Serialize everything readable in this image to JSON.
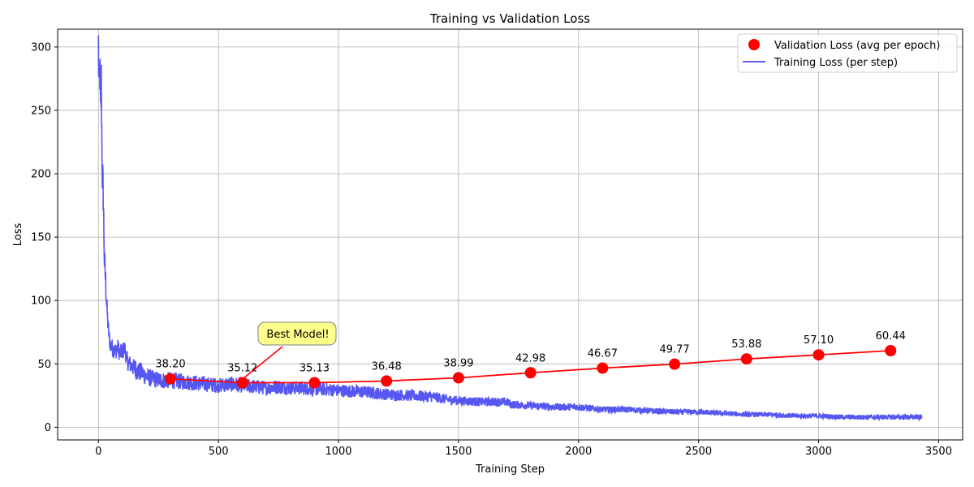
{
  "chart_data": {
    "type": "line",
    "title": "Training vs Validation Loss",
    "xlabel": "Training Step",
    "ylabel": "Loss",
    "xlim": [
      -170,
      3600
    ],
    "ylim": [
      -10,
      314
    ],
    "x_ticks": [
      0,
      500,
      1000,
      1500,
      2000,
      2500,
      3000,
      3500
    ],
    "y_ticks": [
      0,
      50,
      100,
      150,
      200,
      250,
      300
    ],
    "grid": true,
    "legend_position": "top-right",
    "series": [
      {
        "name": "Validation Loss (avg per epoch)",
        "kind": "line-with-markers",
        "color": "#ff0000",
        "x": [
          300,
          600,
          900,
          1200,
          1500,
          1800,
          2100,
          2400,
          2700,
          3000,
          3300
        ],
        "values": [
          38.2,
          35.12,
          35.13,
          36.48,
          38.99,
          42.98,
          46.67,
          49.77,
          53.88,
          57.1,
          60.44
        ],
        "labels": [
          "38.20",
          "35.12",
          "35.13",
          "36.48",
          "38.99",
          "42.98",
          "46.67",
          "49.77",
          "53.88",
          "57.10",
          "60.44"
        ]
      },
      {
        "name": "Training Loss (per step)",
        "kind": "line",
        "color": "#4444ee",
        "x": [
          0,
          3,
          6,
          9,
          12,
          16,
          20,
          25,
          30,
          35,
          40,
          45,
          50,
          60,
          70,
          80,
          90,
          100,
          110,
          120,
          140,
          160,
          180,
          200,
          230,
          260,
          300,
          350,
          400,
          450,
          500,
          550,
          600,
          650,
          700,
          750,
          800,
          850,
          900,
          950,
          1000,
          1100,
          1200,
          1300,
          1400,
          1450,
          1500,
          1600,
          1700,
          1720,
          1800,
          1900,
          2000,
          2050,
          2100,
          2200,
          2300,
          2400,
          2500,
          2600,
          2700,
          2800,
          2900,
          3000,
          3100,
          3200,
          3300,
          3430
        ],
        "values": [
          300,
          262,
          285,
          240,
          270,
          200,
          185,
          130,
          115,
          95,
          80,
          70,
          65,
          62,
          60,
          63,
          58,
          60,
          62,
          52,
          48,
          45,
          43,
          40,
          38,
          37,
          37,
          36,
          35,
          34,
          33,
          34,
          33,
          32,
          31,
          32,
          31,
          31,
          30,
          30,
          29,
          28,
          26,
          25,
          24,
          22,
          21,
          20,
          20,
          18,
          17,
          16,
          16,
          15,
          14,
          14,
          13,
          12,
          12,
          11,
          10,
          10,
          9,
          9,
          8,
          8,
          8,
          8
        ]
      }
    ],
    "annotation": {
      "text": "Best Model!",
      "target": {
        "x": 600,
        "y": 35.12
      },
      "box_color": "#ffff80"
    }
  }
}
